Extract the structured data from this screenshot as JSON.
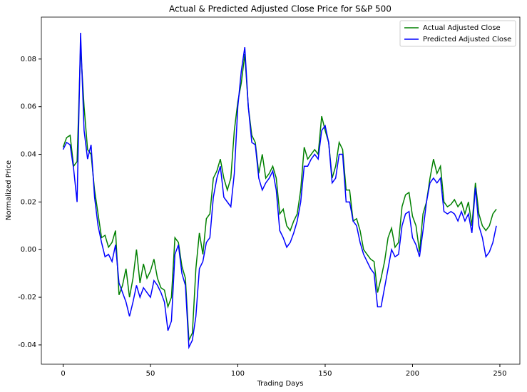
{
  "chart_data": {
    "type": "line",
    "title": "Actual & Predicted Adjusted Close Price for S&P 500",
    "x_label": "Trading Days",
    "y_label": "Normalized Price",
    "x": [
      0,
      2,
      4,
      6,
      8,
      10,
      12,
      14,
      16,
      18,
      20,
      22,
      24,
      26,
      28,
      30,
      32,
      34,
      36,
      38,
      40,
      42,
      44,
      46,
      48,
      50,
      52,
      54,
      56,
      58,
      60,
      62,
      64,
      66,
      68,
      70,
      72,
      74,
      76,
      78,
      80,
      82,
      84,
      86,
      88,
      90,
      92,
      94,
      96,
      98,
      100,
      102,
      104,
      106,
      108,
      110,
      112,
      114,
      116,
      118,
      120,
      122,
      124,
      126,
      128,
      130,
      132,
      134,
      136,
      138,
      140,
      142,
      144,
      146,
      148,
      150,
      152,
      154,
      156,
      158,
      160,
      162,
      164,
      166,
      168,
      170,
      172,
      174,
      176,
      178,
      180,
      182,
      184,
      186,
      188,
      190,
      192,
      194,
      196,
      198,
      200,
      202,
      204,
      206,
      208,
      210,
      212,
      214,
      216,
      218,
      220,
      222,
      224,
      226,
      228,
      230,
      232,
      234,
      236,
      238,
      240,
      242,
      244,
      246,
      248
    ],
    "series": [
      {
        "name": "Actual Adjusted Close",
        "color": "#008000",
        "values": [
          0.043,
          0.047,
          0.048,
          0.035,
          0.037,
          0.085,
          0.06,
          0.042,
          0.04,
          0.025,
          0.015,
          0.005,
          0.006,
          0.001,
          0.003,
          0.008,
          -0.019,
          -0.015,
          -0.008,
          -0.02,
          -0.012,
          0.0,
          -0.014,
          -0.006,
          -0.012,
          -0.009,
          -0.004,
          -0.012,
          -0.016,
          -0.017,
          -0.024,
          -0.02,
          0.005,
          0.003,
          -0.007,
          -0.012,
          -0.038,
          -0.035,
          -0.008,
          0.007,
          -0.002,
          0.013,
          0.015,
          0.03,
          0.033,
          0.038,
          0.03,
          0.025,
          0.03,
          0.05,
          0.062,
          0.07,
          0.082,
          0.06,
          0.048,
          0.045,
          0.032,
          0.04,
          0.03,
          0.032,
          0.035,
          0.03,
          0.015,
          0.017,
          0.01,
          0.008,
          0.012,
          0.015,
          0.025,
          0.043,
          0.038,
          0.04,
          0.042,
          0.04,
          0.056,
          0.05,
          0.045,
          0.03,
          0.035,
          0.045,
          0.042,
          0.025,
          0.025,
          0.012,
          0.013,
          0.008,
          0.0,
          -0.002,
          -0.004,
          -0.005,
          -0.018,
          -0.012,
          -0.005,
          0.005,
          0.009,
          0.001,
          0.003,
          0.018,
          0.023,
          0.024,
          0.014,
          0.01,
          -0.001,
          0.015,
          0.02,
          0.03,
          0.038,
          0.032,
          0.035,
          0.02,
          0.018,
          0.019,
          0.021,
          0.018,
          0.02,
          0.015,
          0.02,
          0.01,
          0.028,
          0.015,
          0.01,
          0.008,
          0.01,
          0.015,
          0.017
        ]
      },
      {
        "name": "Predicted Adjusted Close",
        "color": "#0000ff",
        "values": [
          0.042,
          0.045,
          0.044,
          0.034,
          0.02,
          0.091,
          0.05,
          0.038,
          0.044,
          0.022,
          0.01,
          0.003,
          -0.003,
          -0.002,
          -0.005,
          0.002,
          -0.014,
          -0.018,
          -0.022,
          -0.028,
          -0.022,
          -0.015,
          -0.02,
          -0.016,
          -0.018,
          -0.02,
          -0.013,
          -0.015,
          -0.018,
          -0.022,
          -0.034,
          -0.03,
          -0.002,
          0.002,
          -0.01,
          -0.015,
          -0.041,
          -0.038,
          -0.028,
          -0.008,
          -0.005,
          0.003,
          0.005,
          0.022,
          0.03,
          0.035,
          0.022,
          0.02,
          0.018,
          0.032,
          0.06,
          0.075,
          0.085,
          0.06,
          0.045,
          0.044,
          0.03,
          0.025,
          0.028,
          0.03,
          0.033,
          0.025,
          0.008,
          0.005,
          0.001,
          0.003,
          0.007,
          0.012,
          0.02,
          0.035,
          0.035,
          0.038,
          0.04,
          0.038,
          0.05,
          0.052,
          0.045,
          0.028,
          0.03,
          0.04,
          0.04,
          0.02,
          0.02,
          0.012,
          0.01,
          0.003,
          -0.002,
          -0.005,
          -0.008,
          -0.01,
          -0.024,
          -0.024,
          -0.016,
          -0.008,
          0.0,
          -0.003,
          -0.002,
          0.01,
          0.015,
          0.016,
          0.005,
          0.002,
          -0.003,
          0.008,
          0.02,
          0.028,
          0.03,
          0.028,
          0.03,
          0.016,
          0.015,
          0.016,
          0.015,
          0.012,
          0.016,
          0.012,
          0.015,
          0.007,
          0.026,
          0.01,
          0.005,
          -0.003,
          -0.001,
          0.003,
          0.01
        ]
      }
    ],
    "xlim": [
      -12.45,
      261.45
    ],
    "ylim": [
      -0.0481,
      0.0976
    ],
    "xticks": [
      0,
      50,
      100,
      150,
      200,
      250
    ],
    "yticks": [
      -0.04,
      -0.02,
      {
        "value": 0,
        "label": "0.00"
      },
      0.02,
      0.04,
      0.06,
      0.08
    ],
    "legend": "upper right",
    "grid": false
  }
}
